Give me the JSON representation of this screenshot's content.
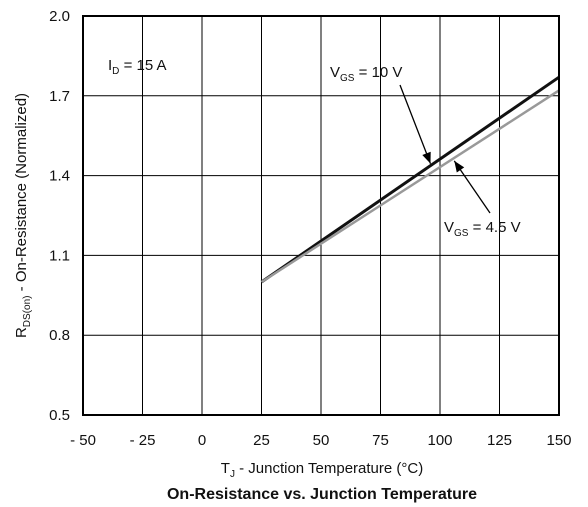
{
  "chart_data": {
    "type": "line",
    "title": "On-Resistance vs. Junction Temperature",
    "xlabel": {
      "main": "T",
      "sub": "J",
      "rest": " - Junction Temperature (°C)"
    },
    "ylabel": {
      "main": "R",
      "sub": "DS(on)",
      "rest": " - On-Resistance (Normalized)"
    },
    "xlim": [
      -50,
      150
    ],
    "ylim": [
      0.5,
      2.0
    ],
    "x_ticks": [
      -50,
      -25,
      0,
      25,
      50,
      75,
      100,
      125,
      150
    ],
    "x_tick_labels": [
      "- 50",
      "- 25",
      "0",
      "25",
      "50",
      "75",
      "100",
      "125",
      "150"
    ],
    "y_ticks": [
      0.5,
      0.8,
      1.1,
      1.4,
      1.7,
      2.0
    ],
    "y_tick_labels": [
      "0.5",
      "0.8",
      "1.1",
      "1.4",
      "1.7",
      "2.0"
    ],
    "grid": true,
    "series": [
      {
        "name_main": "V",
        "name_sub": "GS",
        "name_rest": " = 10 V",
        "color": "#111111",
        "x": [
          25,
          150
        ],
        "y": [
          1.0,
          1.77
        ]
      },
      {
        "name_main": "V",
        "name_sub": "GS",
        "name_rest": " = 4.5 V",
        "color": "#999999",
        "x": [
          25,
          150
        ],
        "y": [
          1.0,
          1.72
        ]
      }
    ],
    "annotation": {
      "main": "I",
      "sub": "D",
      "rest": " = 15 A"
    }
  }
}
